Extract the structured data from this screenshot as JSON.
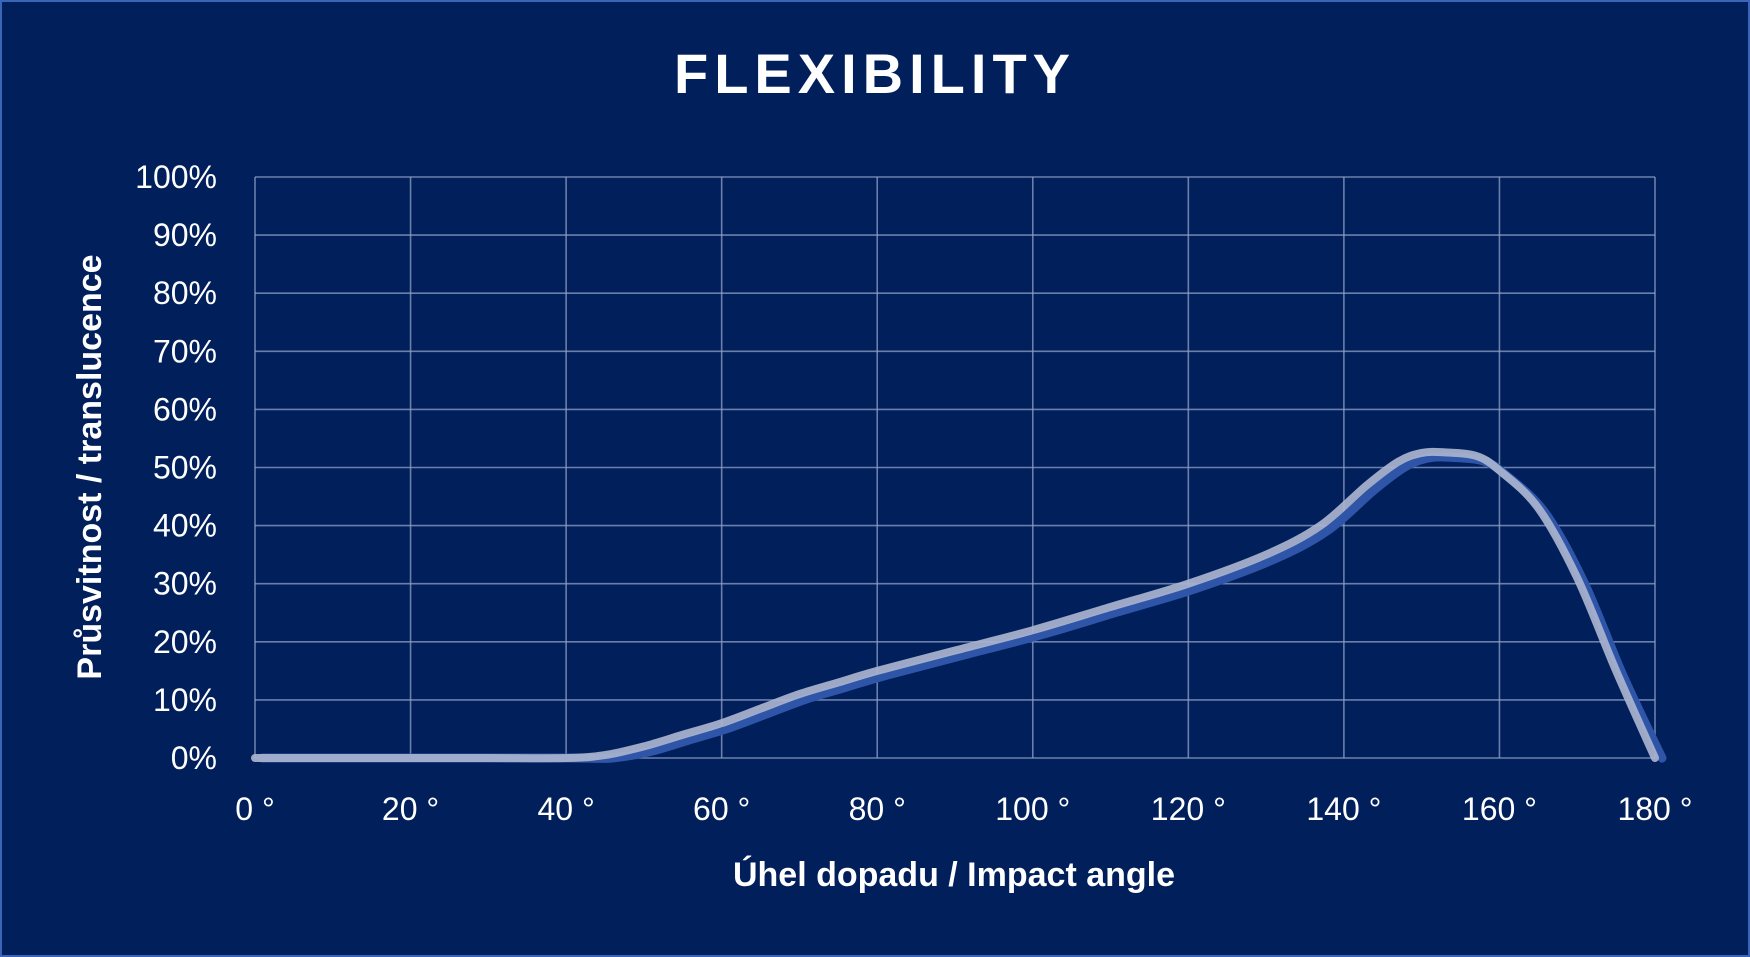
{
  "colors": {
    "background": "#001f5b",
    "border": "#3a64b8",
    "grid": "#8ea0c6",
    "text": "#ffffff",
    "series_front": "#aab4cf",
    "series_back": "#2f55a8"
  },
  "chart_data": {
    "type": "line",
    "title": "FLEXIBILITY",
    "xlabel": "Úhel dopadu / Impact angle",
    "ylabel": "Průsvitnost  / translucence",
    "xlim": [
      0,
      180
    ],
    "ylim": [
      0,
      100
    ],
    "x_ticks": [
      0,
      20,
      40,
      60,
      80,
      100,
      120,
      140,
      160,
      180
    ],
    "x_tick_labels": [
      "0 °",
      "20 °",
      "40 °",
      "60 °",
      "80 °",
      "100 °",
      "120 °",
      "140 °",
      "160 °",
      "180 °"
    ],
    "y_ticks": [
      0,
      10,
      20,
      30,
      40,
      50,
      60,
      70,
      80,
      90,
      100
    ],
    "y_tick_labels": [
      "0%",
      "10%",
      "20%",
      "30%",
      "40%",
      "50%",
      "60%",
      "70%",
      "80%",
      "90%",
      "100%"
    ],
    "grid": true,
    "legend": "none",
    "series": [
      {
        "x": [
          0,
          10,
          20,
          30,
          40,
          45,
          50,
          55,
          60,
          65,
          70,
          75,
          80,
          90,
          100,
          110,
          120,
          130,
          137,
          143,
          147,
          150,
          153,
          157,
          160,
          165,
          170,
          175,
          180
        ],
        "y": [
          0,
          0,
          0,
          0,
          0,
          0.5,
          2,
          4,
          6,
          8.5,
          11,
          13,
          15,
          18.5,
          22,
          26,
          30,
          35,
          40,
          47,
          51,
          52.5,
          52.6,
          52,
          49.5,
          43,
          31,
          15,
          0
        ]
      }
    ]
  }
}
